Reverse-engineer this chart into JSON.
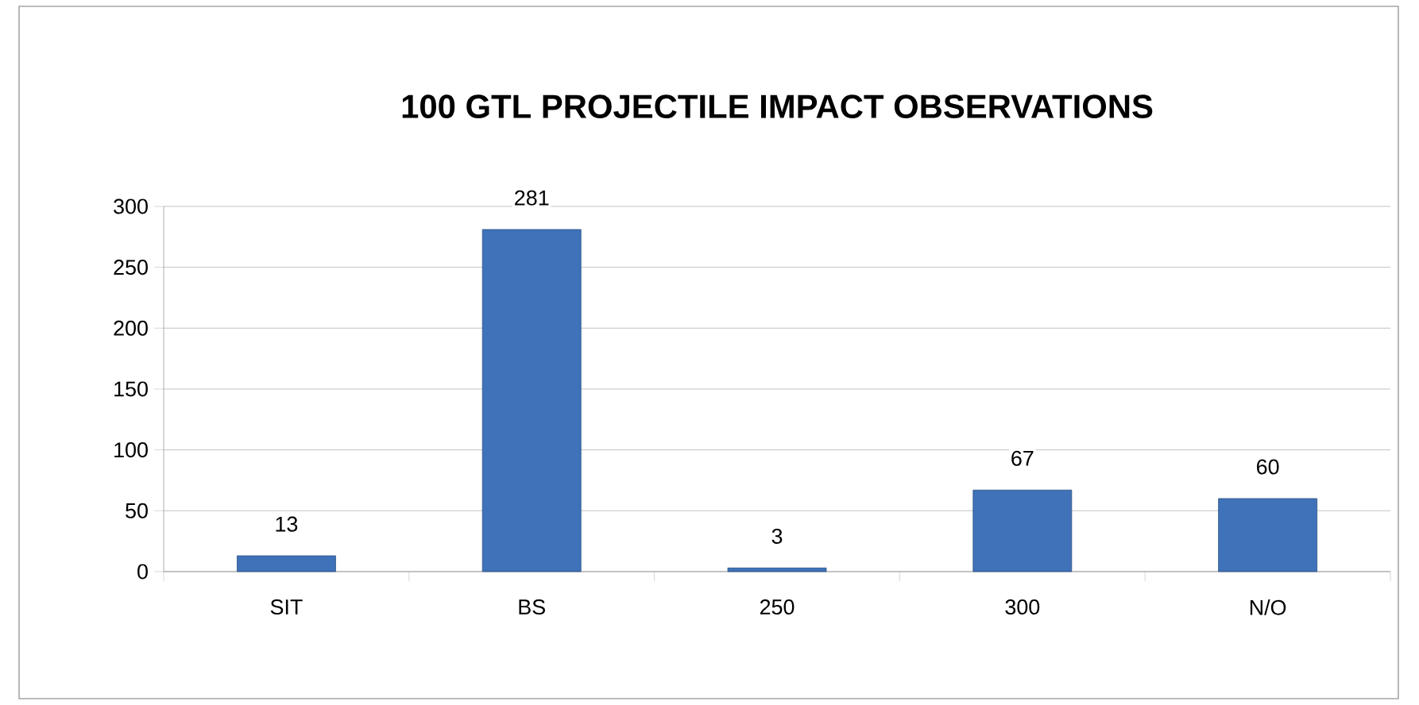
{
  "chart_data": {
    "type": "bar",
    "title": "100 GTL PROJECTILE IMPACT OBSERVATIONS",
    "categories": [
      "SIT",
      "BS",
      "250",
      "300",
      "N/O"
    ],
    "values": [
      13,
      281,
      3,
      67,
      60
    ],
    "color": "#3f72b8",
    "ylim": [
      0,
      300
    ],
    "yticks": [
      0,
      50,
      100,
      150,
      200,
      250,
      300
    ],
    "grid": "y",
    "data_labels": true
  }
}
